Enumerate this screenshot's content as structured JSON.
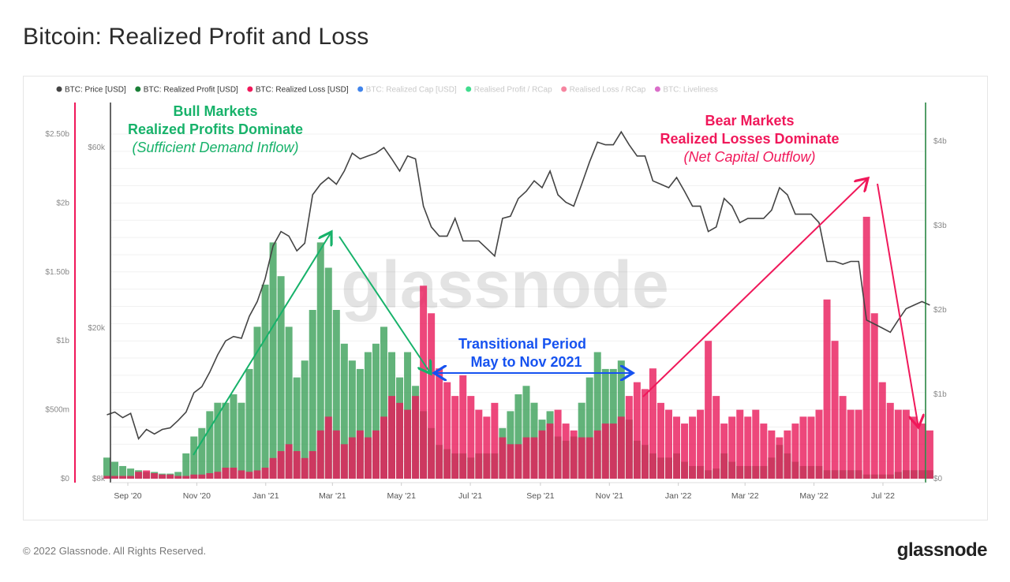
{
  "title": "Bitcoin: Realized Profit and Loss",
  "footer": "© 2022 Glassnode. All Rights Reserved.",
  "logo": "glassnode",
  "watermark": "glassnode",
  "legend": [
    {
      "label": "BTC: Price [USD]",
      "color": "#444444",
      "active": true
    },
    {
      "label": "BTC: Realized Profit [USD]",
      "color": "#1a7f37",
      "active": true
    },
    {
      "label": "BTC: Realized Loss [USD]",
      "color": "#f0185a",
      "active": true
    },
    {
      "label": "BTC: Realized Cap [USD]",
      "color": "#1e6ee8",
      "active": false
    },
    {
      "label": "Realised Profit / RCap",
      "color": "#1fd67a",
      "active": false
    },
    {
      "label": "Realised Loss / RCap",
      "color": "#f5708f",
      "active": false
    },
    {
      "label": "BTC: Liveliness",
      "color": "#d455c0",
      "active": false
    }
  ],
  "annotations": {
    "bull": {
      "line1": "Bull Markets",
      "line2": "Realized Profits Dominate",
      "line3": "(Sufficient Demand Inflow)",
      "color": "#17b26a"
    },
    "bear": {
      "line1": "Bear Markets",
      "line2": "Realized Losses Dominate",
      "line3": "(Net Capital Outflow)",
      "color": "#f0185a"
    },
    "transition": {
      "line1": "Transitional Period",
      "line2": "May to Nov 2021",
      "color": "#1652f0"
    }
  },
  "chart_data": {
    "type": "bar",
    "title": "Bitcoin: Realized Profit and Loss",
    "x_ticks": [
      "Sep '20",
      "Nov '20",
      "Jan '21",
      "Mar '21",
      "May '21",
      "Jul '21",
      "Sep '21",
      "Nov '21",
      "Jan '22",
      "Mar '22",
      "May '22",
      "Jul '22"
    ],
    "x_tick_dates": [
      "2020-09-01",
      "2020-11-01",
      "2021-01-01",
      "2021-03-01",
      "2021-05-01",
      "2021-07-01",
      "2021-09-01",
      "2021-11-01",
      "2022-01-01",
      "2022-03-01",
      "2022-05-01",
      "2022-07-01"
    ],
    "axes": {
      "loss_axis": {
        "side": "left-outer",
        "ticks": [
          "$0",
          "$500m",
          "$1b",
          "$1.50b",
          "$2b",
          "$2.50b"
        ],
        "tick_values": [
          0,
          0.5,
          1,
          1.5,
          2,
          2.5
        ],
        "range": [
          0,
          2.6
        ],
        "unit": "USD billions",
        "color": "#f0185a"
      },
      "price_axis": {
        "side": "left-inner",
        "scale": "log",
        "ticks": [
          "$8k",
          "$20k",
          "$60k"
        ],
        "tick_values": [
          8000,
          20000,
          60000
        ],
        "range": [
          8000,
          70000
        ],
        "color": "#333333"
      },
      "profit_axis": {
        "side": "right",
        "ticks": [
          "$0",
          "$1b",
          "$2b",
          "$3b",
          "$4b"
        ],
        "tick_values": [
          0,
          1,
          2,
          3,
          4
        ],
        "range": [
          0,
          4.2
        ],
        "unit": "USD billions",
        "color": "#1a7f37"
      }
    },
    "grid": true,
    "legend_position": "top-left",
    "dates": [
      "2020-08-10",
      "2020-08-17",
      "2020-08-24",
      "2020-08-31",
      "2020-09-07",
      "2020-09-14",
      "2020-09-21",
      "2020-09-28",
      "2020-10-05",
      "2020-10-12",
      "2020-10-19",
      "2020-10-26",
      "2020-11-02",
      "2020-11-09",
      "2020-11-16",
      "2020-11-23",
      "2020-11-30",
      "2020-12-07",
      "2020-12-14",
      "2020-12-21",
      "2020-12-28",
      "2021-01-04",
      "2021-01-11",
      "2021-01-18",
      "2021-01-25",
      "2021-02-01",
      "2021-02-08",
      "2021-02-15",
      "2021-02-22",
      "2021-03-01",
      "2021-03-08",
      "2021-03-15",
      "2021-03-22",
      "2021-03-29",
      "2021-04-05",
      "2021-04-12",
      "2021-04-19",
      "2021-04-26",
      "2021-05-03",
      "2021-05-10",
      "2021-05-17",
      "2021-05-24",
      "2021-05-31",
      "2021-06-07",
      "2021-06-14",
      "2021-06-21",
      "2021-06-28",
      "2021-07-05",
      "2021-07-12",
      "2021-07-19",
      "2021-07-26",
      "2021-08-02",
      "2021-08-09",
      "2021-08-16",
      "2021-08-23",
      "2021-08-30",
      "2021-09-06",
      "2021-09-13",
      "2021-09-20",
      "2021-09-27",
      "2021-10-04",
      "2021-10-11",
      "2021-10-18",
      "2021-10-25",
      "2021-11-01",
      "2021-11-08",
      "2021-11-15",
      "2021-11-22",
      "2021-11-29",
      "2021-12-06",
      "2021-12-13",
      "2021-12-20",
      "2021-12-27",
      "2022-01-03",
      "2022-01-10",
      "2022-01-17",
      "2022-01-24",
      "2022-01-31",
      "2022-02-07",
      "2022-02-14",
      "2022-02-21",
      "2022-02-28",
      "2022-03-07",
      "2022-03-14",
      "2022-03-21",
      "2022-03-28",
      "2022-04-04",
      "2022-04-11",
      "2022-04-18",
      "2022-04-25",
      "2022-05-02",
      "2022-05-09",
      "2022-05-16",
      "2022-05-23",
      "2022-05-30",
      "2022-06-06",
      "2022-06-13",
      "2022-06-20",
      "2022-06-27",
      "2022-07-04",
      "2022-07-11",
      "2022-07-18",
      "2022-07-25",
      "2022-08-01",
      "2022-08-08"
    ],
    "series": [
      {
        "name": "BTC: Price [USD]",
        "type": "line",
        "axis": "price_axis",
        "color": "#444444",
        "values": [
          11800,
          12000,
          11600,
          11900,
          10200,
          10800,
          10500,
          10800,
          10900,
          11400,
          12000,
          13500,
          14000,
          15300,
          17000,
          18500,
          19000,
          18800,
          21500,
          23500,
          27000,
          33000,
          36000,
          35000,
          32000,
          33500,
          45000,
          48000,
          50000,
          48000,
          52000,
          58000,
          56000,
          57000,
          58000,
          60000,
          56000,
          52000,
          57000,
          56000,
          42000,
          37000,
          35000,
          35000,
          39000,
          34000,
          34000,
          34000,
          32500,
          31000,
          39000,
          39500,
          44000,
          46000,
          49000,
          47000,
          52000,
          45000,
          43000,
          42000,
          48000,
          55000,
          62000,
          61000,
          61000,
          66000,
          61000,
          57000,
          57000,
          49000,
          48000,
          47000,
          50000,
          46000,
          42000,
          42000,
          36000,
          37000,
          44000,
          42000,
          38000,
          39000,
          39000,
          39000,
          41000,
          47000,
          45000,
          40000,
          40000,
          40000,
          38000,
          30000,
          30000,
          29500,
          30000,
          30000,
          21000,
          20500,
          20000,
          19500,
          21000,
          22500,
          23000,
          23500,
          23000
        ]
      },
      {
        "name": "BTC: Realized Profit [USD]",
        "type": "bar",
        "axis": "profit_axis",
        "color": "#1a7f37",
        "values": [
          0.25,
          0.2,
          0.15,
          0.12,
          0.1,
          0.08,
          0.08,
          0.06,
          0.06,
          0.08,
          0.3,
          0.5,
          0.6,
          0.8,
          0.9,
          0.9,
          1.0,
          0.9,
          1.3,
          1.8,
          2.3,
          2.8,
          2.4,
          1.8,
          1.2,
          1.4,
          2.0,
          2.8,
          2.5,
          2.0,
          1.6,
          1.4,
          1.3,
          1.5,
          1.6,
          1.8,
          1.5,
          1.2,
          1.5,
          1.1,
          0.8,
          0.6,
          0.4,
          0.35,
          0.3,
          0.3,
          0.25,
          0.3,
          0.3,
          0.3,
          0.6,
          0.8,
          1.0,
          1.1,
          0.9,
          0.7,
          0.8,
          0.5,
          0.45,
          0.5,
          0.9,
          1.2,
          1.5,
          1.3,
          1.3,
          1.4,
          0.7,
          0.45,
          0.4,
          0.3,
          0.25,
          0.25,
          0.3,
          0.2,
          0.15,
          0.15,
          0.1,
          0.12,
          0.3,
          0.2,
          0.15,
          0.15,
          0.15,
          0.15,
          0.25,
          0.4,
          0.3,
          0.2,
          0.15,
          0.15,
          0.15,
          0.1,
          0.1,
          0.1,
          0.1,
          0.1,
          0.05,
          0.05,
          0.05,
          0.05,
          0.08,
          0.1,
          0.1,
          0.1,
          0.1
        ]
      },
      {
        "name": "BTC: Realized Loss [USD]",
        "type": "bar",
        "axis": "loss_axis",
        "color": "#f0185a",
        "values": [
          0.02,
          0.02,
          0.02,
          0.02,
          0.05,
          0.06,
          0.04,
          0.03,
          0.03,
          0.02,
          0.02,
          0.03,
          0.03,
          0.04,
          0.05,
          0.08,
          0.08,
          0.06,
          0.05,
          0.06,
          0.08,
          0.15,
          0.2,
          0.25,
          0.2,
          0.15,
          0.2,
          0.35,
          0.45,
          0.35,
          0.25,
          0.3,
          0.35,
          0.3,
          0.35,
          0.45,
          0.6,
          0.55,
          0.5,
          0.6,
          1.4,
          1.2,
          0.8,
          0.7,
          0.6,
          0.75,
          0.6,
          0.5,
          0.45,
          0.55,
          0.3,
          0.25,
          0.25,
          0.3,
          0.3,
          0.35,
          0.4,
          0.5,
          0.4,
          0.35,
          0.3,
          0.3,
          0.35,
          0.4,
          0.4,
          0.45,
          0.6,
          0.7,
          0.65,
          0.8,
          0.55,
          0.5,
          0.45,
          0.4,
          0.45,
          0.5,
          1.0,
          0.6,
          0.4,
          0.45,
          0.5,
          0.45,
          0.5,
          0.4,
          0.35,
          0.3,
          0.35,
          0.4,
          0.45,
          0.45,
          0.5,
          1.3,
          1.0,
          0.6,
          0.5,
          0.5,
          1.9,
          1.2,
          0.7,
          0.55,
          0.5,
          0.5,
          0.45,
          0.4,
          0.35
        ]
      }
    ]
  }
}
